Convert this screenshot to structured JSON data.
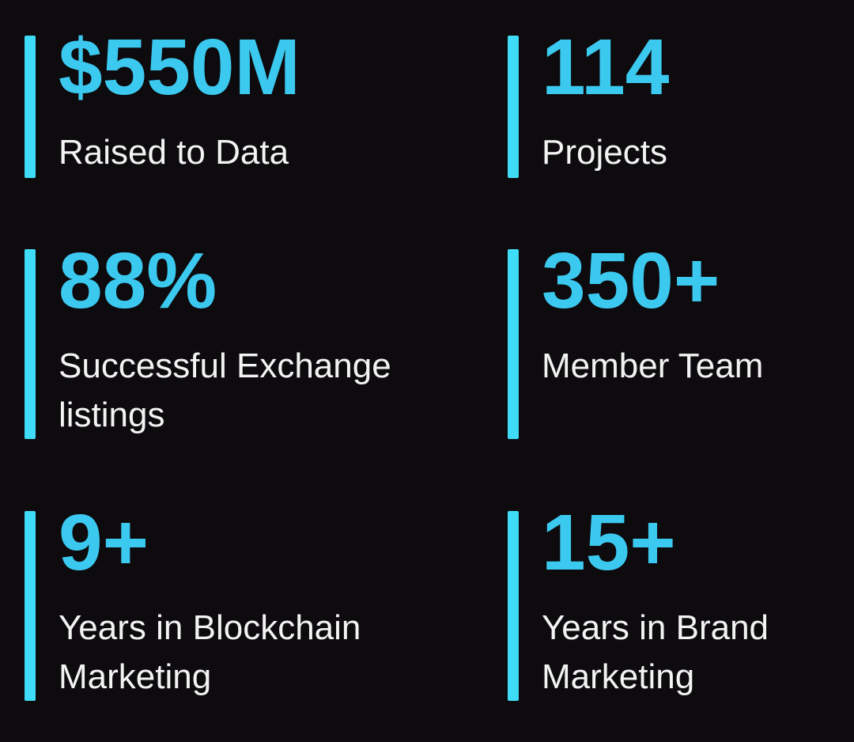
{
  "section": {
    "background_color": "#0D0B0E",
    "bar_color": "#3EDCF6",
    "value_color": "#3CC9F0",
    "label_color": "#F3F3F3"
  },
  "stats": [
    {
      "value": "$550M",
      "label": "Raised to Data"
    },
    {
      "value": "114",
      "label": "Projects"
    },
    {
      "value": "88%",
      "label": "Successful Exchange listings"
    },
    {
      "value": "350+",
      "label": "Member Team"
    },
    {
      "value": "9+",
      "label": "Years in Blockchain Marketing"
    },
    {
      "value": "15+",
      "label": "Years in Brand Marketing"
    }
  ]
}
